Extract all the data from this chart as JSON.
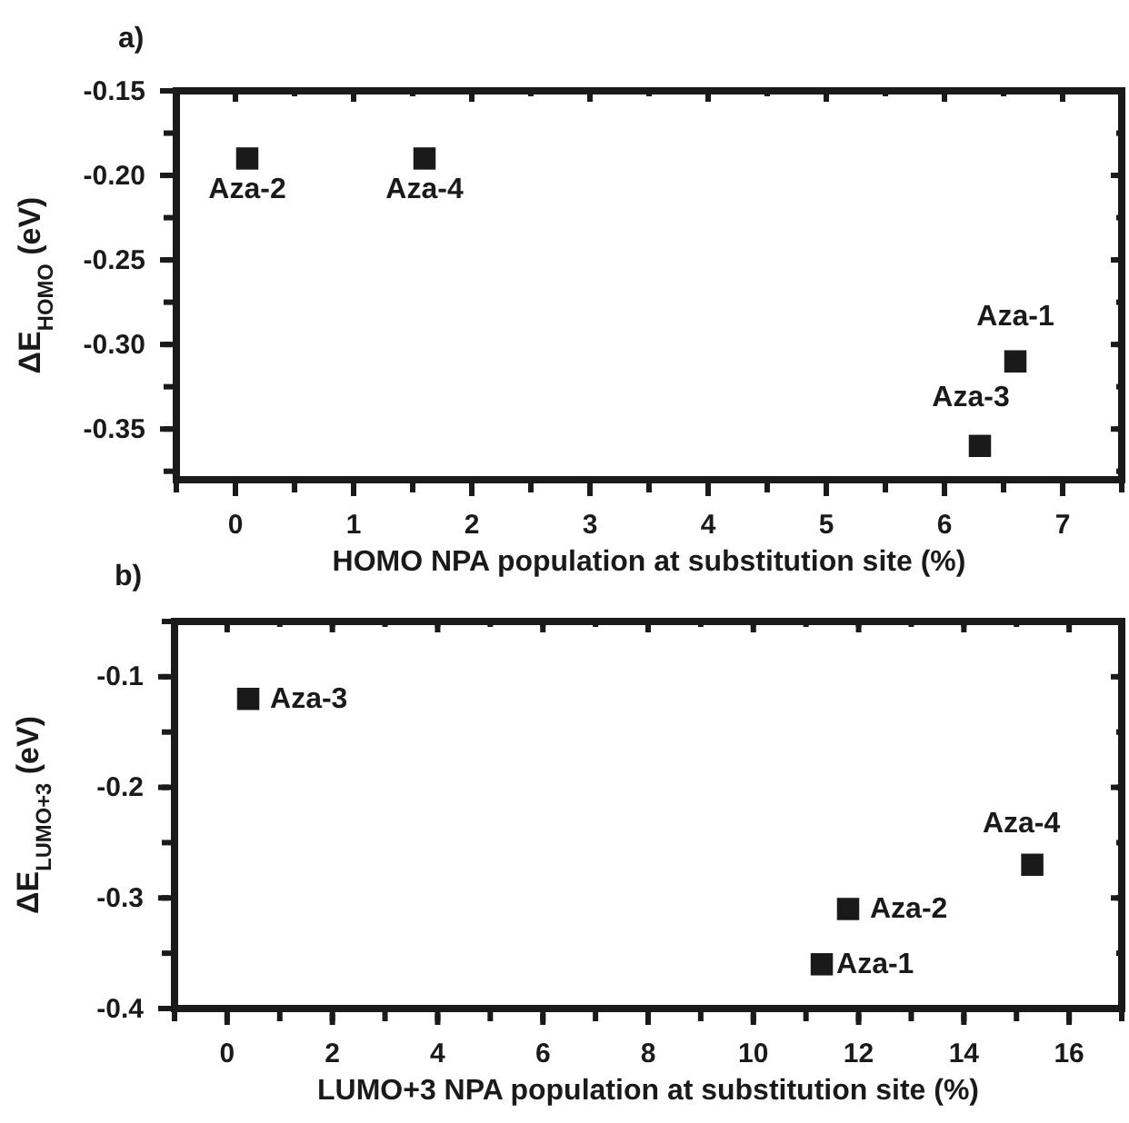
{
  "chart_data": [
    {
      "type": "scatter",
      "title": "a)",
      "xlabel": "HOMO NPA population at substitution site (%)",
      "ylabel": "ΔE$_{HOMO}$ (eV)",
      "marker": "square",
      "grid": false,
      "series": [
        {
          "color": "#1a1a1a",
          "x": [
            0.1,
            1.6,
            6.6,
            6.3
          ],
          "values": [
            -0.19,
            -0.19,
            -0.31,
            -0.36
          ]
        }
      ],
      "xlim": [
        -0.5,
        7.5
      ],
      "xticks": [
        0,
        1,
        2,
        3,
        4,
        5,
        6,
        7
      ],
      "ylim": [
        -0.38,
        -0.15
      ],
      "yticks": [
        {
          "value": -0.35,
          "label": "-0.35"
        },
        {
          "value": -0.3,
          "label": "-0.30"
        },
        {
          "value": -0.25,
          "label": "-0.25"
        },
        {
          "value": -0.2,
          "label": "-0.20"
        },
        {
          "value": -0.15,
          "label": "-0.15"
        }
      ],
      "annotations": [
        {
          "text": "Aza-2",
          "x": 0.1,
          "y": -0.19
        },
        {
          "text": "Aza-4",
          "x": 1.6,
          "y": -0.19
        },
        {
          "text": "Aza-1",
          "x": 6.6,
          "y": -0.31
        },
        {
          "text": "Aza-3",
          "x": 6.3,
          "y": -0.36
        }
      ]
    },
    {
      "type": "scatter",
      "title": "b)",
      "xlabel": "LUMO+3 NPA population at substitution site (%)",
      "ylabel": "ΔE$_{LUMO+3}$ (eV)",
      "marker": "square",
      "grid": false,
      "series": [
        {
          "color": "#1a1a1a",
          "x": [
            0.4,
            11.8,
            11.3,
            15.3
          ],
          "values": [
            -0.12,
            -0.31,
            -0.36,
            -0.27
          ]
        }
      ],
      "xlim": [
        -1,
        17
      ],
      "xticks": [
        0,
        2,
        4,
        6,
        8,
        10,
        12,
        14,
        16
      ],
      "ylim": [
        -0.4,
        -0.05
      ],
      "yticks": [
        -0.4,
        -0.3,
        -0.2,
        -0.1
      ],
      "annotations": [
        {
          "text": "Aza-3",
          "x": 0.4,
          "y": -0.12
        },
        {
          "text": "Aza-2",
          "x": 11.8,
          "y": -0.31
        },
        {
          "text": "Aza-1",
          "x": 11.3,
          "y": -0.36
        },
        {
          "text": "Aza-4",
          "x": 15.3,
          "y": -0.27
        }
      ]
    }
  ]
}
